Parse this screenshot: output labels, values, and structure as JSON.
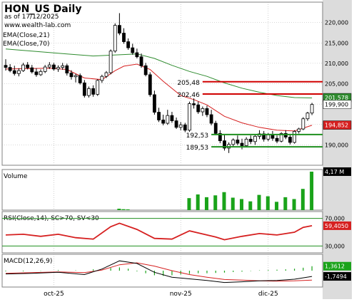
{
  "header": {
    "title": "HON_US Daily",
    "asof": "as of 17/12/2025",
    "site": "www.wealth-lab.com"
  },
  "colors": {
    "ema21": "#d62020",
    "ema70": "#2e8b2e",
    "resistance": "#d00000",
    "support": "#1f8f1f",
    "rsi": "#d62020",
    "volume": "#1aa31a",
    "macd": "#000000",
    "signal": "#d62020",
    "hist": "#1aa31a",
    "axis_bg": "#dcdcdc",
    "grid": "#b0b0b0"
  },
  "chart_data": [
    {
      "type": "candlestick",
      "name": "price",
      "legend": [
        "EMA(Close,21)",
        "EMA(Close,70)"
      ],
      "ylim": [
        185,
        225
      ],
      "yticks": [
        190,
        195,
        200,
        205,
        210,
        215,
        220
      ],
      "ytick_labels": [
        "190,000",
        "195,000",
        "200,000",
        "205,000",
        "210,000",
        "215,000",
        "220,000"
      ],
      "x_labels": [
        {
          "label": "oct-25",
          "i": 11
        },
        {
          "label": "nov-25",
          "i": 40
        },
        {
          "label": "dic-25",
          "i": 60
        }
      ],
      "candles": [
        [
          0,
          209.5,
          211.0,
          208.2,
          209.0
        ],
        [
          1,
          209.0,
          209.8,
          207.8,
          208.2
        ],
        [
          2,
          208.2,
          209.4,
          207.0,
          207.5
        ],
        [
          3,
          207.5,
          208.8,
          206.8,
          208.2
        ],
        [
          4,
          208.2,
          210.1,
          207.9,
          209.6
        ],
        [
          5,
          209.6,
          210.3,
          208.5,
          208.9
        ],
        [
          6,
          208.9,
          209.6,
          207.5,
          207.9
        ],
        [
          7,
          207.9,
          208.8,
          206.7,
          207.2
        ],
        [
          8,
          207.2,
          208.5,
          206.9,
          208.0
        ],
        [
          9,
          208.0,
          209.6,
          207.6,
          209.1
        ],
        [
          10,
          209.1,
          210.3,
          208.6,
          209.6
        ],
        [
          11,
          209.6,
          210.1,
          208.2,
          208.6
        ],
        [
          12,
          208.6,
          209.5,
          207.9,
          209.0
        ],
        [
          13,
          209.0,
          210.1,
          208.4,
          209.4
        ],
        [
          14,
          209.4,
          209.9,
          207.0,
          207.6
        ],
        [
          15,
          207.6,
          208.3,
          206.0,
          206.7
        ],
        [
          16,
          206.7,
          207.4,
          205.3,
          207.0
        ],
        [
          17,
          207.0,
          207.5,
          204.8,
          205.2
        ],
        [
          18,
          205.2,
          205.9,
          201.6,
          202.1
        ],
        [
          19,
          202.1,
          204.3,
          201.6,
          203.8
        ],
        [
          20,
          203.8,
          204.6,
          201.8,
          202.4
        ],
        [
          21,
          202.4,
          206.1,
          202.0,
          205.8
        ],
        [
          22,
          205.8,
          207.2,
          205.2,
          206.8
        ],
        [
          23,
          206.8,
          208.1,
          206.4,
          207.7
        ],
        [
          24,
          207.7,
          213.4,
          207.3,
          213.0
        ],
        [
          25,
          213.0,
          219.8,
          212.6,
          219.3
        ],
        [
          26,
          219.3,
          222.3,
          216.9,
          217.4
        ],
        [
          27,
          217.4,
          218.6,
          214.8,
          215.3
        ],
        [
          28,
          215.3,
          216.1,
          213.3,
          213.8
        ],
        [
          29,
          213.8,
          214.8,
          212.1,
          212.6
        ],
        [
          30,
          212.6,
          213.6,
          211.2,
          211.6
        ],
        [
          31,
          211.6,
          212.4,
          208.9,
          209.4
        ],
        [
          32,
          209.4,
          210.1,
          206.8,
          207.2
        ],
        [
          33,
          207.2,
          207.8,
          201.8,
          202.3
        ],
        [
          34,
          202.3,
          203.3,
          197.4,
          198.0
        ],
        [
          35,
          198.0,
          199.1,
          195.6,
          196.1
        ],
        [
          36,
          196.1,
          197.4,
          194.8,
          195.3
        ],
        [
          37,
          195.3,
          198.6,
          194.9,
          197.2
        ],
        [
          38,
          197.2,
          198.1,
          195.4,
          195.9
        ],
        [
          39,
          195.9,
          196.7,
          193.9,
          194.3
        ],
        [
          40,
          194.3,
          195.6,
          193.6,
          194.9
        ],
        [
          41,
          194.9,
          195.4,
          193.1,
          193.6
        ],
        [
          42,
          193.6,
          200.6,
          193.2,
          200.1
        ],
        [
          43,
          200.1,
          201.4,
          198.9,
          199.8
        ],
        [
          44,
          199.8,
          200.6,
          197.6,
          198.1
        ],
        [
          45,
          198.1,
          199.4,
          197.1,
          198.9
        ],
        [
          46,
          198.9,
          199.6,
          196.8,
          197.4
        ],
        [
          47,
          197.4,
          198.6,
          194.8,
          195.3
        ],
        [
          48,
          195.3,
          195.9,
          192.4,
          192.8
        ],
        [
          49,
          192.8,
          193.6,
          190.4,
          191.0
        ],
        [
          50,
          191.0,
          192.4,
          188.6,
          189.2
        ],
        [
          51,
          189.2,
          190.6,
          188.0,
          190.1
        ],
        [
          52,
          190.1,
          191.6,
          189.4,
          191.2
        ],
        [
          53,
          191.2,
          192.3,
          189.9,
          190.4
        ],
        [
          54,
          190.4,
          191.5,
          188.9,
          189.8
        ],
        [
          55,
          189.8,
          191.9,
          189.4,
          191.4
        ],
        [
          56,
          191.4,
          192.3,
          190.2,
          190.8
        ],
        [
          57,
          190.8,
          192.6,
          190.0,
          192.1
        ],
        [
          58,
          192.1,
          193.6,
          191.4,
          192.7
        ],
        [
          59,
          192.7,
          193.4,
          190.8,
          191.4
        ],
        [
          60,
          191.4,
          192.9,
          190.9,
          192.5
        ],
        [
          61,
          192.5,
          193.4,
          191.0,
          191.6
        ],
        [
          62,
          191.6,
          192.3,
          190.4,
          190.9
        ],
        [
          63,
          190.9,
          193.1,
          190.6,
          192.8
        ],
        [
          64,
          192.8,
          193.6,
          191.4,
          191.9
        ],
        [
          65,
          191.9,
          192.4,
          190.1,
          190.6
        ],
        [
          66,
          190.6,
          193.6,
          190.3,
          193.3
        ],
        [
          67,
          193.3,
          194.2,
          192.8,
          193.9
        ],
        [
          68,
          193.9,
          196.8,
          193.6,
          196.4
        ],
        [
          69,
          196.4,
          198.1,
          195.9,
          197.8
        ],
        [
          70,
          197.8,
          200.3,
          197.3,
          199.9
        ]
      ],
      "ema21": [
        [
          0,
          208.6
        ],
        [
          10,
          208.8
        ],
        [
          14,
          208.5
        ],
        [
          18,
          206.4
        ],
        [
          22,
          206.0
        ],
        [
          25,
          208.2
        ],
        [
          27,
          209.3
        ],
        [
          30,
          209.8
        ],
        [
          33,
          208.5
        ],
        [
          36,
          205.6
        ],
        [
          40,
          202.1
        ],
        [
          43,
          201.1
        ],
        [
          46,
          199.8
        ],
        [
          50,
          197.0
        ],
        [
          54,
          195.4
        ],
        [
          58,
          194.3
        ],
        [
          62,
          193.6
        ],
        [
          66,
          193.4
        ],
        [
          70,
          194.8
        ]
      ],
      "ema70": [
        [
          0,
          213.5
        ],
        [
          8,
          212.8
        ],
        [
          14,
          212.3
        ],
        [
          20,
          211.8
        ],
        [
          26,
          212.1
        ],
        [
          30,
          212.3
        ],
        [
          34,
          211.2
        ],
        [
          38,
          209.5
        ],
        [
          42,
          208.0
        ],
        [
          46,
          206.8
        ],
        [
          50,
          205.2
        ],
        [
          54,
          203.9
        ],
        [
          58,
          202.9
        ],
        [
          62,
          202.1
        ],
        [
          66,
          201.6
        ],
        [
          70,
          201.5
        ]
      ],
      "levels": [
        {
          "label": "205,48",
          "value": 205.48,
          "kind": "resistance",
          "from_i": 45
        },
        {
          "label": "202,46",
          "value": 202.46,
          "kind": "resistance",
          "from_i": 45
        },
        {
          "label": "192,53",
          "value": 192.53,
          "kind": "support",
          "from_i": 47
        },
        {
          "label": "189,53",
          "value": 189.53,
          "kind": "support",
          "from_i": 47
        }
      ],
      "tags": [
        {
          "label": "201,578",
          "value": 201.578,
          "kind": "ema70"
        },
        {
          "label": "199,900",
          "value": 199.9,
          "kind": "price"
        },
        {
          "label": "194,852",
          "value": 194.852,
          "kind": "ema21"
        }
      ]
    },
    {
      "type": "bar",
      "name": "volume",
      "title": "Volume",
      "ylim": [
        0,
        4.4
      ],
      "tag": "4,17 M",
      "values": [
        [
          26,
          0.15
        ],
        [
          27,
          0.1
        ],
        [
          28,
          0.08
        ],
        [
          42,
          1.3
        ],
        [
          44,
          1.7
        ],
        [
          46,
          1.4
        ],
        [
          48,
          1.6
        ],
        [
          50,
          1.95
        ],
        [
          52,
          1.35
        ],
        [
          54,
          1.2
        ],
        [
          56,
          0.95
        ],
        [
          58,
          1.65
        ],
        [
          60,
          1.5
        ],
        [
          62,
          0.9
        ],
        [
          64,
          1.4
        ],
        [
          66,
          1.2
        ],
        [
          68,
          2.3
        ],
        [
          70,
          4.17
        ]
      ]
    },
    {
      "type": "line",
      "name": "rsi",
      "title": "RSI(Close,14), SC>70, SV<30",
      "ylim": [
        20,
        80
      ],
      "yticks": [
        30,
        70
      ],
      "ytick_labels": [
        "30,000",
        "70,000"
      ],
      "tag": "59,4050",
      "tag_value": 59.405,
      "values": [
        [
          0,
          46
        ],
        [
          4,
          47
        ],
        [
          8,
          44
        ],
        [
          12,
          47
        ],
        [
          16,
          42
        ],
        [
          20,
          40
        ],
        [
          24,
          58
        ],
        [
          26,
          63
        ],
        [
          30,
          54
        ],
        [
          34,
          41
        ],
        [
          38,
          40
        ],
        [
          42,
          52
        ],
        [
          44,
          49
        ],
        [
          48,
          43
        ],
        [
          50,
          39
        ],
        [
          54,
          44
        ],
        [
          58,
          48
        ],
        [
          62,
          46
        ],
        [
          66,
          50
        ],
        [
          68,
          57
        ],
        [
          70,
          59.4
        ]
      ]
    },
    {
      "type": "line",
      "name": "macd",
      "title": "MACD(12,26,9)",
      "ylim": [
        -5,
        5
      ],
      "tags": [
        {
          "label": "1,3612",
          "value": 1.3612,
          "kind": "hist"
        },
        {
          "label": "-1,7494",
          "value": -1.7494,
          "kind": "macd"
        }
      ],
      "macd": [
        [
          0,
          -1.0
        ],
        [
          6,
          -0.8
        ],
        [
          12,
          -0.5
        ],
        [
          18,
          -1.2
        ],
        [
          22,
          0.5
        ],
        [
          26,
          3.0
        ],
        [
          30,
          2.2
        ],
        [
          34,
          -0.5
        ],
        [
          38,
          -2.0
        ],
        [
          42,
          -2.5
        ],
        [
          46,
          -3.0
        ],
        [
          50,
          -3.6
        ],
        [
          54,
          -3.4
        ],
        [
          58,
          -3.1
        ],
        [
          62,
          -3.0
        ],
        [
          66,
          -2.6
        ],
        [
          70,
          -1.75
        ]
      ],
      "signal": [
        [
          0,
          -0.8
        ],
        [
          6,
          -0.6
        ],
        [
          12,
          -0.4
        ],
        [
          18,
          -0.6
        ],
        [
          22,
          0.2
        ],
        [
          26,
          1.8
        ],
        [
          30,
          2.4
        ],
        [
          34,
          1.4
        ],
        [
          38,
          0.0
        ],
        [
          42,
          -1.2
        ],
        [
          46,
          -2.0
        ],
        [
          50,
          -2.7
        ],
        [
          54,
          -2.9
        ],
        [
          58,
          -3.1
        ],
        [
          62,
          -3.2
        ],
        [
          66,
          -3.1
        ],
        [
          70,
          -2.9
        ]
      ],
      "hist": [
        [
          0,
          -0.2
        ],
        [
          4,
          -0.2
        ],
        [
          8,
          -0.1
        ],
        [
          12,
          0.2
        ],
        [
          16,
          0.1
        ],
        [
          20,
          0.4
        ],
        [
          24,
          0.8
        ],
        [
          26,
          1.0
        ],
        [
          28,
          0.6
        ],
        [
          30,
          -0.2
        ],
        [
          32,
          -0.8
        ],
        [
          34,
          -1.4
        ],
        [
          36,
          -1.6
        ],
        [
          38,
          -1.4
        ],
        [
          40,
          -1.2
        ],
        [
          42,
          -1.0
        ],
        [
          44,
          -0.8
        ],
        [
          46,
          -0.8
        ],
        [
          48,
          -0.7
        ],
        [
          50,
          -0.6
        ],
        [
          52,
          -0.4
        ],
        [
          54,
          -0.3
        ],
        [
          56,
          -0.1
        ],
        [
          58,
          0.1
        ],
        [
          60,
          0.2
        ],
        [
          62,
          0.3
        ],
        [
          64,
          0.4
        ],
        [
          66,
          0.6
        ],
        [
          68,
          0.9
        ],
        [
          70,
          1.36
        ]
      ]
    }
  ]
}
